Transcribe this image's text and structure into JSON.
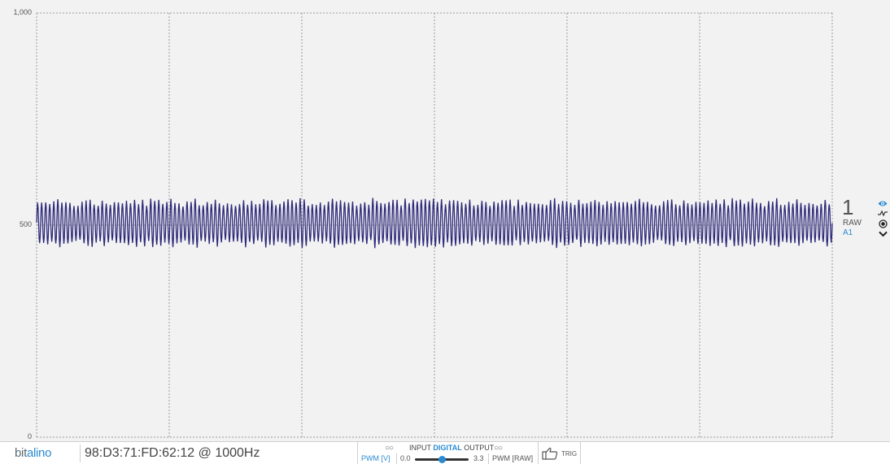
{
  "chart_data": {
    "type": "line",
    "title": "",
    "xlabel": "",
    "ylabel": "",
    "ylim": [
      0,
      1000
    ],
    "yticks": [
      {
        "value": 0,
        "label": "0"
      },
      {
        "value": 500,
        "label": "500"
      },
      {
        "value": 1000,
        "label": "1,000"
      }
    ],
    "grid": true,
    "vertical_grid_lines": 6,
    "series": [
      {
        "color": "#2e2a7a",
        "description": "oscillating signal",
        "center": 505,
        "amplitude": 48,
        "cycles": 197,
        "y_range": [
          455,
          580
        ]
      }
    ]
  },
  "channel": {
    "number": "1",
    "mode": "RAW",
    "label": "A1",
    "icons": [
      "eye-icon",
      "waveform-icon",
      "radio-icon",
      "chevron-down-icon"
    ],
    "accent": "#2a8ad2"
  },
  "footer": {
    "logo_text": "bitalino",
    "device": "98:D3:71:FD:62:12 @ 1000Hz",
    "io": {
      "input_label": "INPUT",
      "digital_label": "DIGITAL",
      "output_label": "OUTPUT",
      "pwm_v_label": "PWM [V]",
      "pwm_min": "0.0",
      "pwm_max": "3.3",
      "pwm_raw_label": "PWM [RAW]",
      "slider_value": 0.5
    },
    "trig_label": "TRIG"
  }
}
